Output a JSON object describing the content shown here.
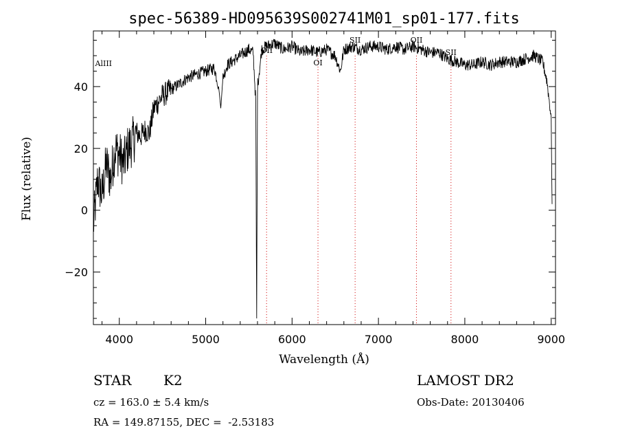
{
  "chart_data": {
    "type": "line",
    "title": "spec-56389-HD095639S002741M01_sp01-177.fits",
    "xlabel": "Wavelength (Å)",
    "ylabel": "Flux (relative)",
    "xlim": [
      3700,
      9050
    ],
    "ylim": [
      -37,
      58
    ],
    "x_ticks": [
      4000,
      5000,
      6000,
      7000,
      8000,
      9000
    ],
    "y_ticks": [
      -20,
      0,
      20,
      40
    ],
    "grid": false,
    "series": [
      {
        "color": "#000000",
        "x": [
          3700,
          3750,
          3800,
          3850,
          3900,
          3950,
          4000,
          4050,
          4100,
          4150,
          4200,
          4250,
          4300,
          4350,
          4400,
          4500,
          4600,
          4700,
          4800,
          4900,
          5000,
          5100,
          5150,
          5175,
          5200,
          5250,
          5300,
          5400,
          5500,
          5550,
          5580,
          5590,
          5600,
          5650,
          5700,
          5800,
          5900,
          6000,
          6100,
          6200,
          6300,
          6400,
          6500,
          6560,
          6600,
          6700,
          6800,
          6900,
          7000,
          7100,
          7200,
          7300,
          7400,
          7500,
          7600,
          7700,
          7800,
          7900,
          8000,
          8100,
          8200,
          8300,
          8400,
          8500,
          8600,
          8700,
          8800,
          8900,
          8950,
          9000,
          9010
        ],
        "y": [
          -5,
          10,
          5,
          15,
          10,
          20,
          18,
          15,
          20,
          22,
          25,
          24,
          26,
          25,
          33,
          37,
          39,
          41,
          43,
          44,
          45,
          46,
          40,
          33,
          43,
          47,
          48,
          50,
          52,
          51,
          35,
          -35,
          40,
          52,
          53,
          54,
          52,
          53,
          51,
          52,
          51,
          52,
          50,
          45,
          52,
          53,
          52,
          53,
          53,
          52,
          53,
          52,
          53,
          52,
          51,
          51,
          49,
          48,
          47,
          47,
          48,
          47,
          48,
          48,
          48,
          49,
          50,
          48,
          42,
          30,
          2
        ]
      }
    ],
    "line_markers": [
      {
        "label": "AlIII",
        "x": 3720
      },
      {
        "label": "OII",
        "x": 5705
      },
      {
        "label": "OI",
        "x": 6300
      },
      {
        "label": "SII",
        "x": 6730
      },
      {
        "label": "OII",
        "x": 7440
      },
      {
        "label": "SII",
        "x": 7840
      }
    ]
  },
  "info": {
    "class": "STAR",
    "subclass": "K2",
    "survey": "LAMOST DR2",
    "cz": "cz = 163.0 ± 5.4 km/s",
    "obs_date": "Obs-Date: 20130406",
    "radec": "RA = 149.87155, DEC =  -2.53183"
  }
}
